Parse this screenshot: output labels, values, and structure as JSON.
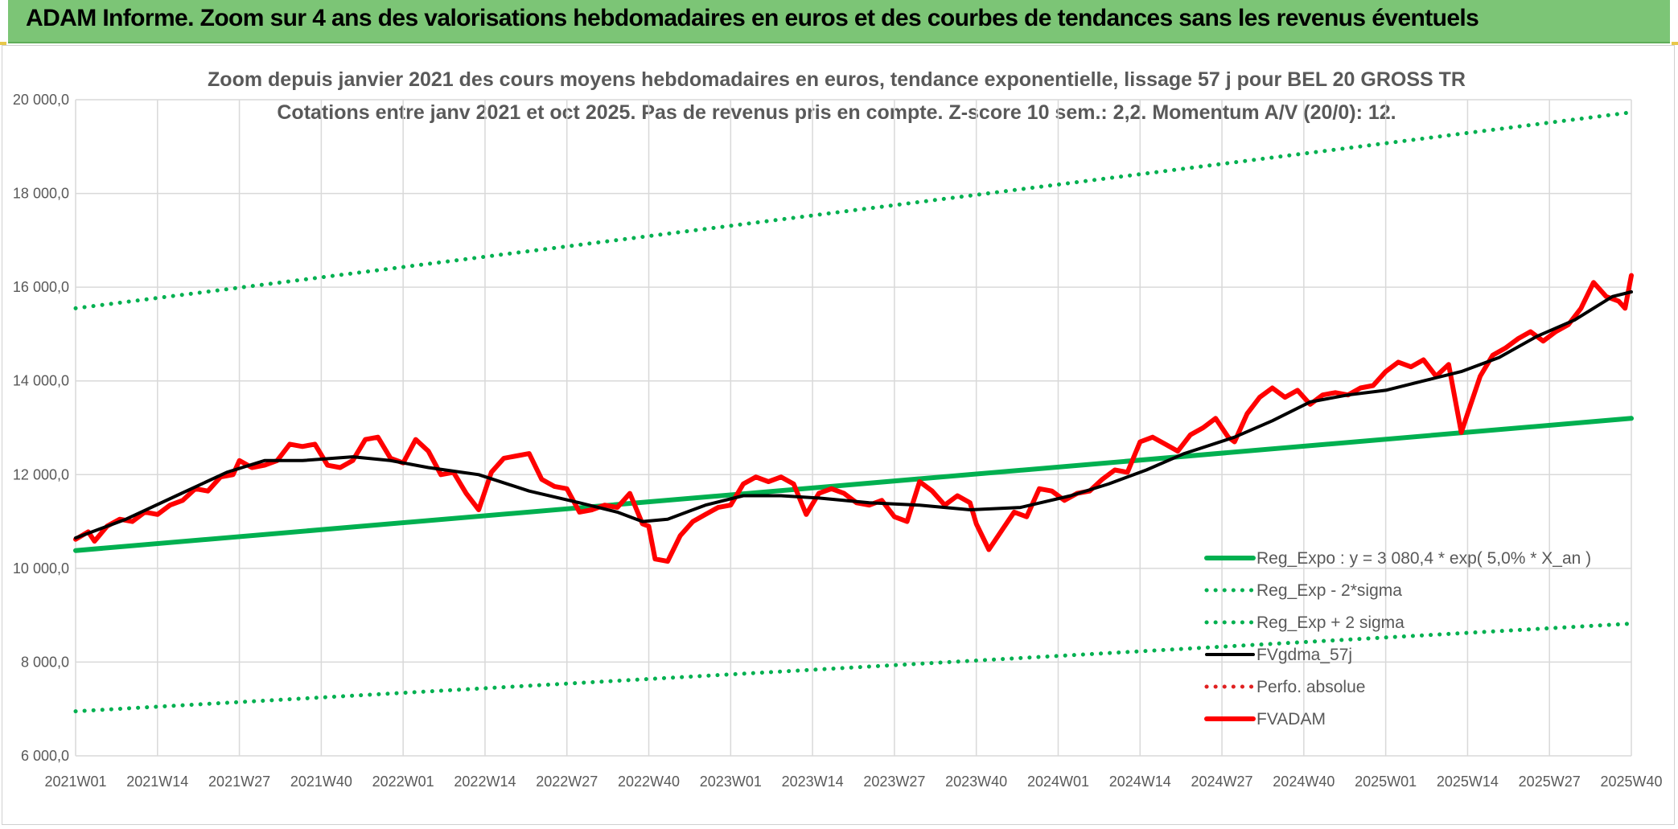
{
  "header": {
    "title": "ADAM Informe. Zoom sur 4 ans des valorisations hebdomadaires en euros et des courbes de tendances sans les revenus éventuels"
  },
  "colors": {
    "banner": "#7cc576",
    "trend_green": "#00b050",
    "price_red": "#ff0000",
    "smooth_black": "#000000",
    "perf_red": "#e02020",
    "grid": "#d9d9d9",
    "text": "#595959"
  },
  "chart_data": {
    "type": "line",
    "title": [
      "Zoom depuis janvier 2021 des cours moyens hebdomadaires en euros, tendance exponentielle, lissage 57 j pour BEL 20 GROSS TR",
      "Cotations entre janv 2021 et oct 2025. Pas de revenus pris en compte. Z-score 10 sem.: 2,2. Momentum A/V (20/0): 12."
    ],
    "xlabel": "",
    "ylabel": "",
    "ylim": [
      6000,
      20000
    ],
    "yticks": [
      "20 000,0",
      "18 000,0",
      "16 000,0",
      "14 000,0",
      "12 000,0",
      "10 000,0",
      "8 000,0",
      "6 000,0"
    ],
    "ytick_values": [
      20000,
      18000,
      16000,
      14000,
      12000,
      10000,
      8000,
      6000
    ],
    "x_range_weeks": [
      0,
      247
    ],
    "xticks": [
      "2021W01",
      "2021W14",
      "2021W27",
      "2021W40",
      "2022W01",
      "2022W14",
      "2022W27",
      "2022W40",
      "2023W01",
      "2023W14",
      "2023W27",
      "2023W40",
      "2024W01",
      "2024W14",
      "2024W27",
      "2024W40",
      "2025W01",
      "2025W14",
      "2025W27",
      "2025W40"
    ],
    "xtick_weeks": [
      0,
      13,
      26,
      39,
      52,
      65,
      78,
      91,
      104,
      117,
      130,
      143,
      156,
      169,
      182,
      195,
      208,
      221,
      234,
      247
    ],
    "grid": true,
    "legend_position": "bottom-right",
    "series": [
      {
        "name": "Reg_Expo : y = 3 080,4 * exp( 5,0% *  X_an )",
        "style": "solid-thick",
        "color": "#00b050",
        "x": [
          0,
          247
        ],
        "y": [
          10380,
          13200
        ]
      },
      {
        "name": "Reg_Exp - 2*sigma",
        "style": "dotted",
        "color": "#00b050",
        "x": [
          0,
          247
        ],
        "y": [
          15550,
          19730
        ]
      },
      {
        "name": "Reg_Exp + 2 sigma",
        "style": "dotted",
        "color": "#00b050",
        "x": [
          0,
          247
        ],
        "y": [
          6950,
          8820
        ]
      },
      {
        "name": "FVgdma_57j",
        "style": "solid",
        "color": "#000000",
        "x": [
          0,
          8,
          16,
          24,
          30,
          36,
          44,
          50,
          56,
          64,
          72,
          80,
          86,
          90,
          94,
          100,
          106,
          112,
          118,
          126,
          134,
          142,
          150,
          158,
          164,
          170,
          176,
          184,
          190,
          196,
          202,
          208,
          214,
          220,
          226,
          232,
          238,
          244,
          247
        ],
        "y": [
          10650,
          11050,
          11550,
          12050,
          12300,
          12300,
          12380,
          12300,
          12150,
          12000,
          11650,
          11400,
          11200,
          11000,
          11050,
          11350,
          11550,
          11550,
          11500,
          11400,
          11350,
          11250,
          11300,
          11550,
          11800,
          12100,
          12450,
          12800,
          13150,
          13550,
          13700,
          13800,
          14000,
          14200,
          14500,
          14950,
          15300,
          15800,
          15900
        ]
      },
      {
        "name": "Perfo. absolue",
        "style": "dotted",
        "color": "#e02020",
        "x": [],
        "y": []
      },
      {
        "name": "FVADAM",
        "style": "solid-thick",
        "color": "#ff0000",
        "x": [
          0,
          2,
          3,
          5,
          7,
          9,
          11,
          13,
          15,
          17,
          19,
          21,
          23,
          25,
          26,
          28,
          30,
          32,
          34,
          36,
          38,
          40,
          42,
          44,
          46,
          48,
          50,
          52,
          54,
          56,
          58,
          60,
          62,
          64,
          66,
          68,
          70,
          72,
          74,
          76,
          78,
          80,
          82,
          84,
          86,
          88,
          90,
          91,
          92,
          94,
          96,
          98,
          100,
          102,
          104,
          106,
          108,
          110,
          112,
          114,
          116,
          118,
          120,
          122,
          124,
          126,
          128,
          130,
          132,
          134,
          136,
          138,
          140,
          142,
          143,
          145,
          147,
          149,
          151,
          153,
          155,
          157,
          159,
          161,
          163,
          165,
          167,
          169,
          171,
          173,
          175,
          177,
          179,
          181,
          183,
          184,
          186,
          188,
          190,
          192,
          194,
          196,
          198,
          200,
          202,
          204,
          206,
          208,
          210,
          212,
          214,
          216,
          218,
          220,
          221,
          223,
          225,
          227,
          229,
          231,
          233,
          235,
          237,
          239,
          241,
          243,
          245,
          246,
          247
        ],
        "y": [
          10620,
          10780,
          10580,
          10900,
          11050,
          11000,
          11200,
          11150,
          11350,
          11450,
          11700,
          11650,
          11950,
          12000,
          12300,
          12150,
          12200,
          12300,
          12650,
          12600,
          12650,
          12200,
          12150,
          12300,
          12750,
          12800,
          12350,
          12250,
          12750,
          12500,
          12000,
          12050,
          11600,
          11250,
          12050,
          12350,
          12400,
          12450,
          11900,
          11750,
          11700,
          11200,
          11250,
          11350,
          11300,
          11600,
          10950,
          10900,
          10200,
          10150,
          10700,
          11000,
          11150,
          11300,
          11350,
          11800,
          11950,
          11850,
          11950,
          11800,
          11150,
          11600,
          11700,
          11600,
          11400,
          11350,
          11450,
          11100,
          11000,
          11850,
          11650,
          11350,
          11550,
          11400,
          10950,
          10400,
          10800,
          11200,
          11100,
          11700,
          11650,
          11450,
          11600,
          11650,
          11900,
          12100,
          12050,
          12700,
          12800,
          12650,
          12500,
          12850,
          13000,
          13200,
          12800,
          12700,
          13300,
          13650,
          13850,
          13650,
          13800,
          13500,
          13700,
          13750,
          13700,
          13850,
          13900,
          14200,
          14400,
          14300,
          14450,
          14100,
          14350,
          12900,
          13300,
          14100,
          14550,
          14700,
          14900,
          15050,
          14850,
          15050,
          15200,
          15550,
          16100,
          15800,
          15700,
          15550,
          16250
        ]
      }
    ]
  }
}
